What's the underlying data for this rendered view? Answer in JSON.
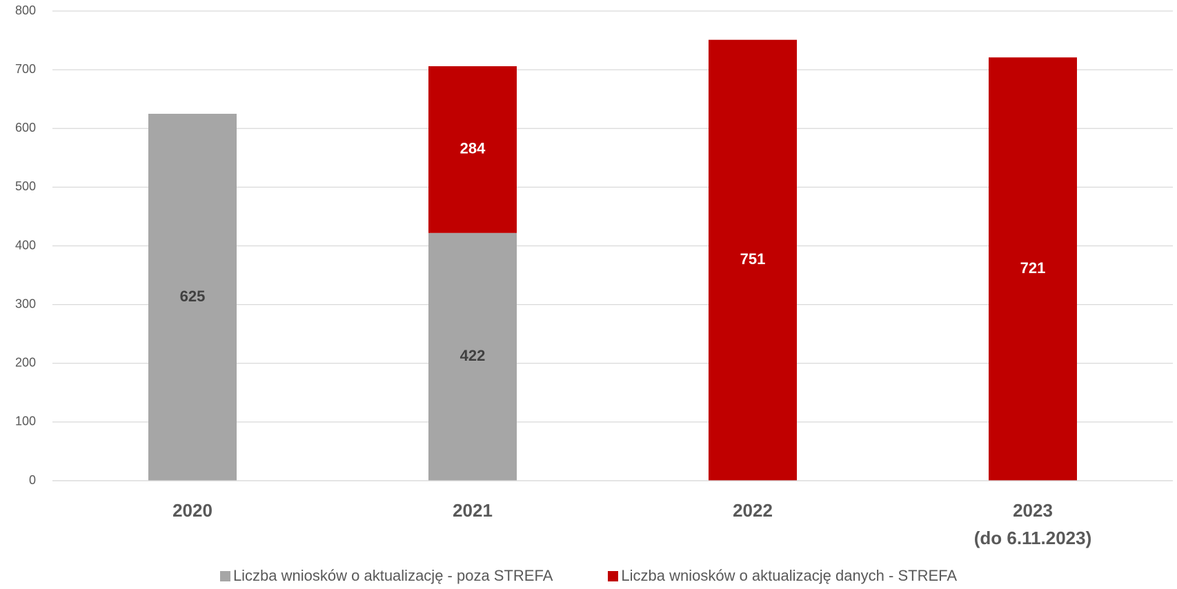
{
  "chart_data": {
    "type": "stacked_bar",
    "categories": [
      "2020",
      "2021",
      "2022",
      "2023\n(do 6.11.2023)"
    ],
    "series": [
      {
        "name": "Liczba wniosków o aktualizację - poza STREFA",
        "color": "#a6a6a6",
        "label_color": "#404040",
        "values": [
          625,
          422,
          null,
          null
        ]
      },
      {
        "name": "Liczba wniosków o aktualizację danych - STREFA",
        "color": "#c00000",
        "label_color": "#ffffff",
        "values": [
          null,
          284,
          751,
          721
        ]
      }
    ],
    "ylim": [
      0,
      800
    ],
    "yticks": [
      0,
      100,
      200,
      300,
      400,
      500,
      600,
      700,
      800
    ],
    "grid": true,
    "legend": "bottom"
  }
}
